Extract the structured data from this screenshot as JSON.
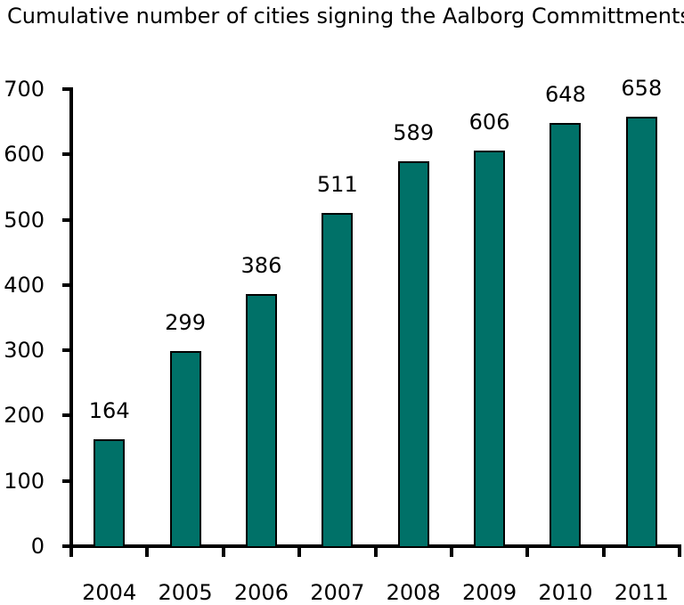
{
  "title": "Cumulative number of cities signing the Aalborg Committments",
  "chart_data": {
    "type": "bar",
    "title": "Cumulative number of cities signing the Aalborg Committments",
    "categories": [
      "2004",
      "2005",
      "2006",
      "2007",
      "2008",
      "2009",
      "2010",
      "2011"
    ],
    "values": [
      164,
      299,
      386,
      511,
      589,
      606,
      648,
      658
    ],
    "value_labels": [
      "164",
      "299",
      "386",
      "511",
      "589",
      "606",
      "648",
      "658"
    ],
    "xlabel": "",
    "ylabel": "",
    "ylim": [
      0,
      700
    ],
    "yticks": [
      0,
      100,
      200,
      300,
      400,
      500,
      600,
      700
    ],
    "grid": false,
    "legend": "none",
    "bar_color": "#007168",
    "bar_border_color": "#000000",
    "axis_color": "#000000",
    "text_color": "#000000",
    "background_color": "#ffffff"
  }
}
